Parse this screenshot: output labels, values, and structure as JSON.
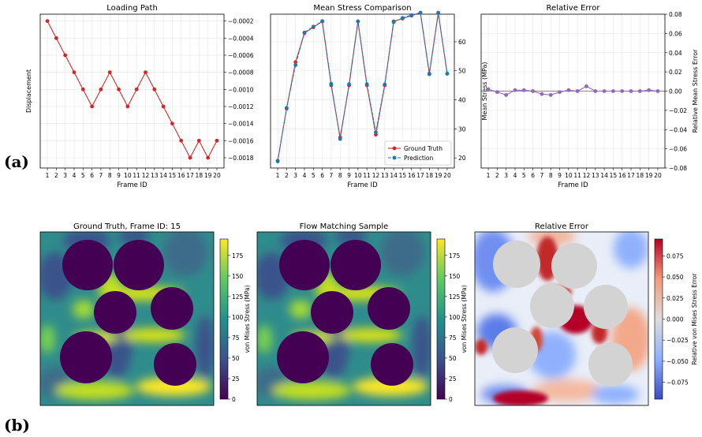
{
  "panel_labels": {
    "a": "(a)",
    "b": "(b)"
  },
  "colors": {
    "ground_truth": "#d62728",
    "prediction": "#1f77b4",
    "error_line": "#9467bd",
    "grid": "#e6e6e6",
    "mask": "#d3d3d3"
  },
  "chart_data": [
    {
      "type": "line",
      "title": "Loading Path",
      "xlabel": "Frame ID",
      "ylabel": "Displacement",
      "y_axis_side": "right",
      "x": [
        1,
        2,
        3,
        4,
        5,
        6,
        7,
        8,
        9,
        10,
        11,
        12,
        13,
        14,
        15,
        16,
        17,
        18,
        19,
        20
      ],
      "xlim": [
        0.2,
        20.8
      ],
      "ylim": [
        -0.00192,
        -0.00012
      ],
      "yticks": [
        -0.0002,
        -0.0004,
        -0.0006,
        -0.0008,
        -0.001,
        -0.0012,
        -0.0014,
        -0.0016,
        -0.0018
      ],
      "ytick_labels": [
        "−0.0002",
        "−0.0004",
        "−0.0006",
        "−0.0008",
        "−0.0010",
        "−0.0012",
        "−0.0014",
        "−0.0016",
        "−0.0018"
      ],
      "grid": true,
      "series": [
        {
          "values": [
            -0.0002,
            -0.0004,
            -0.0006,
            -0.0008,
            -0.001,
            -0.0012,
            -0.001,
            -0.0008,
            -0.001,
            -0.0012,
            -0.001,
            -0.0008,
            -0.001,
            -0.0012,
            -0.0014,
            -0.0016,
            -0.0018,
            -0.0016,
            -0.0018,
            -0.0016
          ],
          "color": "#d62728",
          "marker": "circle",
          "dashed": false
        }
      ]
    },
    {
      "type": "line",
      "title": "Mean Stress Comparison",
      "xlabel": "Frame ID",
      "ylabel": "Mean Stress (MPa)",
      "y_axis_side": "right",
      "x": [
        1,
        2,
        3,
        4,
        5,
        6,
        7,
        8,
        9,
        10,
        11,
        12,
        13,
        14,
        15,
        16,
        17,
        18,
        19,
        20
      ],
      "xlim": [
        0.2,
        20.8
      ],
      "ylim": [
        16.5,
        69.5
      ],
      "yticks": [
        20,
        30,
        40,
        50,
        60
      ],
      "ytick_labels": [
        "20",
        "30",
        "40",
        "50",
        "60"
      ],
      "grid": true,
      "legend_position": "lower-right",
      "series": [
        {
          "name": "Ground Truth",
          "values": [
            19,
            37,
            53,
            63,
            65,
            67,
            45,
            27,
            45,
            67,
            45,
            28,
            45,
            67,
            68,
            69,
            70,
            49,
            70,
            49
          ],
          "color": "#d62728",
          "marker": "circle",
          "dashed": false
        },
        {
          "name": "Prediction",
          "values": [
            18.8,
            37.2,
            52,
            63.2,
            65.2,
            67.1,
            45.5,
            26.5,
            45.4,
            67,
            45.4,
            28.8,
            45.3,
            66.8,
            68.2,
            69.2,
            70,
            48.8,
            70,
            49
          ],
          "color": "#1f77b4",
          "marker": "circle",
          "dashed": true
        }
      ]
    },
    {
      "type": "line",
      "title": "Relative Error",
      "xlabel": "Frame ID",
      "ylabel": "Relative Mean Stress Error",
      "y_axis_side": "right",
      "x": [
        1,
        2,
        3,
        4,
        5,
        6,
        7,
        8,
        9,
        10,
        11,
        12,
        13,
        14,
        15,
        16,
        17,
        18,
        19,
        20
      ],
      "xlim": [
        0.2,
        20.8
      ],
      "ylim": [
        -0.08,
        0.08
      ],
      "yticks": [
        -0.08,
        -0.06,
        -0.04,
        -0.02,
        0.0,
        0.02,
        0.04,
        0.06,
        0.08
      ],
      "ytick_labels": [
        "−0.08",
        "−0.06",
        "−0.04",
        "−0.02",
        "0.00",
        "0.02",
        "0.04",
        "0.06",
        "0.08"
      ],
      "grid": true,
      "series": [
        {
          "values": [
            0.002,
            -0.001,
            -0.004,
            0.001,
            0.001,
            0.0,
            -0.003,
            -0.004,
            -0.001,
            0.001,
            0.0,
            0.005,
            0.0,
            0.0,
            0.0,
            0.0,
            0.0,
            0.0,
            0.001,
            0.0
          ],
          "color": "#9467bd",
          "marker": "circle",
          "dashed": false
        }
      ]
    },
    {
      "type": "heatmap",
      "title": "Ground Truth, Frame ID: 15",
      "colorbar_label": "von Mises Stress (MPa)",
      "colormap": "viridis",
      "clim": [
        0,
        195
      ],
      "colorbar_ticks": [
        0,
        25,
        50,
        75,
        100,
        125,
        150,
        175
      ],
      "colorbar_tick_labels": [
        "0",
        "25",
        "50",
        "75",
        "100",
        "125",
        "150",
        "175"
      ]
    },
    {
      "type": "heatmap",
      "title": "Flow Matching Sample",
      "colorbar_label": "von Mises Stress (MPa)",
      "colormap": "viridis",
      "clim": [
        0,
        195
      ],
      "colorbar_ticks": [
        0,
        25,
        50,
        75,
        100,
        125,
        150,
        175
      ],
      "colorbar_tick_labels": [
        "0",
        "25",
        "50",
        "75",
        "100",
        "125",
        "150",
        "175"
      ]
    },
    {
      "type": "heatmap",
      "title": "Relative Error",
      "colorbar_label": "Relative von Mises Stress Error",
      "colormap": "coolwarm",
      "clim": [
        -0.095,
        0.095
      ],
      "colorbar_ticks": [
        -0.075,
        -0.05,
        -0.025,
        0.0,
        0.025,
        0.05,
        0.075
      ],
      "colorbar_tick_labels": [
        "−0.075",
        "−0.050",
        "−0.025",
        "0.000",
        "0.025",
        "0.050",
        "0.075"
      ]
    }
  ]
}
